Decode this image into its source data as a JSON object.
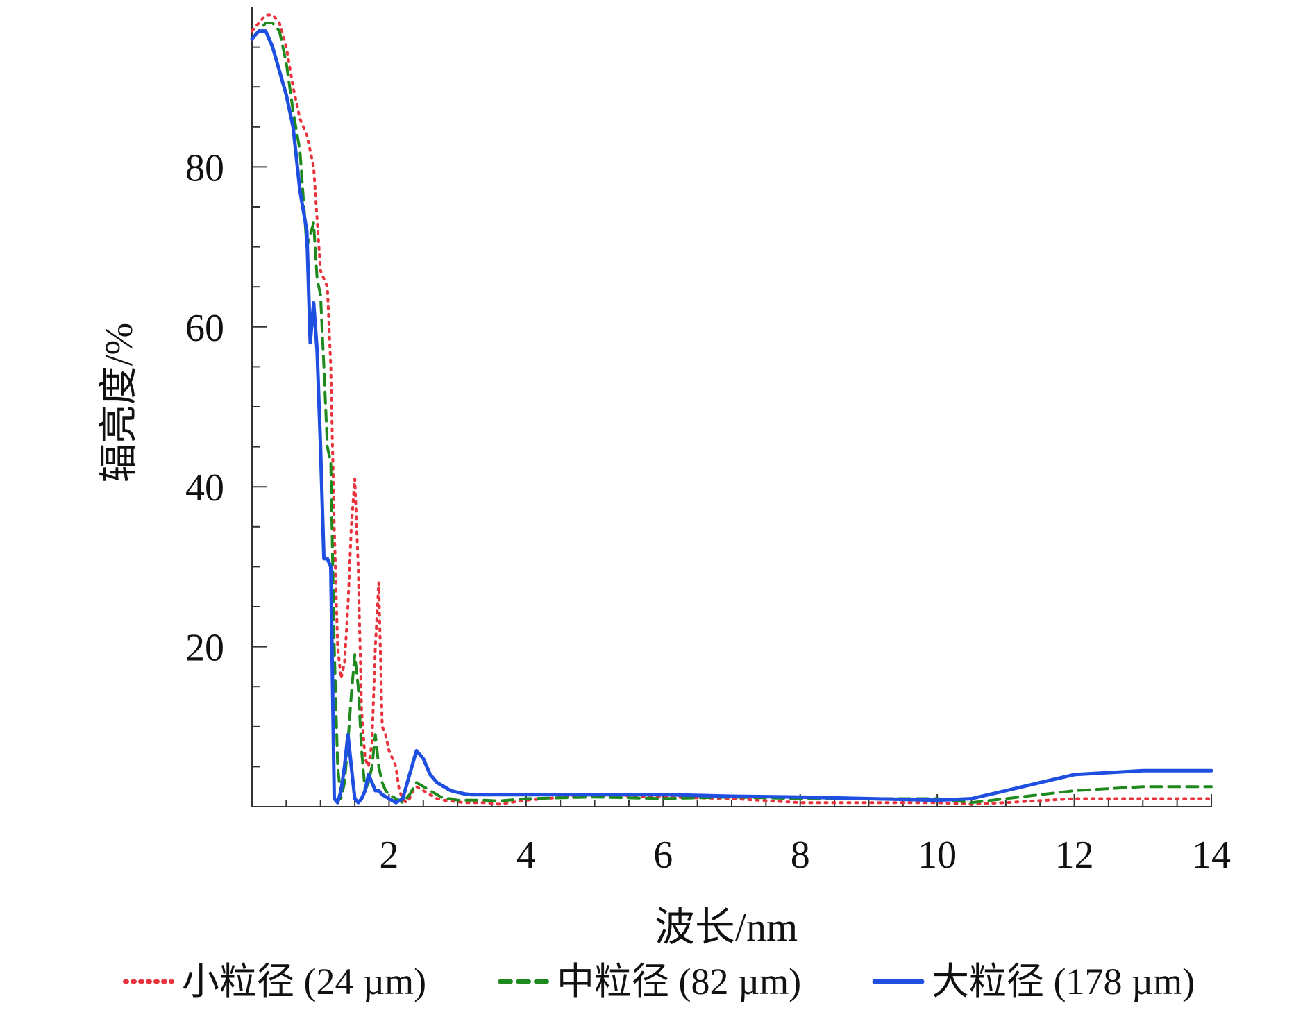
{
  "chart_data": {
    "type": "line",
    "xlabel": "波长/nm",
    "ylabel": "辐亮度/%",
    "xlim": [
      0,
      14
    ],
    "ylim": [
      0,
      100
    ],
    "x_ticks": [
      2,
      4,
      6,
      8,
      10,
      12,
      14
    ],
    "y_ticks": [
      20,
      40,
      60,
      80
    ],
    "grid": false,
    "legend": "bottom",
    "series": [
      {
        "name": "小粒径 (24 µm)",
        "color": "#e8323c",
        "style": "dotted",
        "x": [
          0.0,
          0.1,
          0.2,
          0.3,
          0.4,
          0.5,
          0.6,
          0.7,
          0.8,
          0.9,
          1.0,
          1.05,
          1.1,
          1.15,
          1.2,
          1.25,
          1.3,
          1.35,
          1.4,
          1.45,
          1.5,
          1.55,
          1.6,
          1.65,
          1.7,
          1.75,
          1.8,
          1.85,
          1.9,
          1.95,
          2.0,
          2.05,
          2.1,
          2.15,
          2.2,
          2.25,
          2.3,
          2.35,
          2.4,
          2.5,
          2.6,
          2.7,
          2.8,
          2.9,
          3.0,
          3.1,
          3.2,
          3.4,
          3.6,
          4.0,
          5.0,
          6.0,
          7.0,
          8.0,
          9.0,
          10.0,
          10.5,
          11.0,
          12.0,
          13.0,
          14.0
        ],
        "y": [
          97,
          98,
          99,
          99,
          98,
          95,
          90,
          86,
          84,
          80,
          67,
          66,
          65,
          55,
          35,
          20,
          16,
          18,
          25,
          35,
          41,
          30,
          12,
          6,
          5,
          8,
          20,
          28,
          10,
          9,
          7,
          6,
          5,
          2,
          1,
          0.5,
          1,
          2,
          2.5,
          2,
          1.5,
          1,
          0.8,
          0.7,
          0.6,
          0.5,
          0.5,
          0.5,
          0.3,
          0.8,
          1.5,
          1.2,
          1.0,
          0.5,
          0.5,
          0.5,
          0.3,
          0.5,
          1.0,
          1.0,
          1.0
        ]
      },
      {
        "name": "中粒径 (82 µm)",
        "color": "#1e8a1e",
        "style": "dashed",
        "x": [
          0.0,
          0.1,
          0.2,
          0.3,
          0.4,
          0.5,
          0.6,
          0.7,
          0.8,
          0.9,
          0.95,
          1.0,
          1.05,
          1.1,
          1.15,
          1.2,
          1.25,
          1.3,
          1.35,
          1.4,
          1.45,
          1.5,
          1.55,
          1.6,
          1.65,
          1.7,
          1.75,
          1.8,
          1.85,
          1.9,
          1.95,
          2.0,
          2.1,
          2.2,
          2.3,
          2.4,
          2.5,
          2.6,
          2.7,
          2.8,
          2.9,
          3.0,
          3.2,
          3.4,
          3.6,
          4.0,
          5.0,
          6.0,
          7.0,
          8.0,
          9.0,
          10.0,
          10.5,
          11.0,
          12.0,
          13.0,
          14.0
        ],
        "y": [
          96,
          97,
          98,
          98,
          97,
          93,
          87,
          82,
          70,
          73,
          66,
          64,
          55,
          45,
          43,
          20,
          5,
          1,
          3,
          8,
          14,
          19,
          15,
          7,
          2,
          3,
          5,
          9,
          5,
          3,
          2,
          1.5,
          1,
          0.5,
          1.5,
          3,
          2.5,
          2,
          1.5,
          1,
          1,
          0.8,
          0.8,
          0.8,
          0.7,
          1.0,
          1.2,
          1.0,
          1.2,
          1.0,
          1.0,
          1.0,
          0.5,
          1.0,
          2.0,
          2.5,
          2.5
        ]
      },
      {
        "name": "大粒径 (178 µm)",
        "color": "#1f4fe0",
        "style": "solid",
        "x": [
          0.0,
          0.1,
          0.2,
          0.3,
          0.4,
          0.5,
          0.6,
          0.7,
          0.8,
          0.85,
          0.9,
          0.95,
          1.0,
          1.05,
          1.1,
          1.15,
          1.2,
          1.25,
          1.3,
          1.35,
          1.4,
          1.45,
          1.5,
          1.55,
          1.6,
          1.65,
          1.7,
          1.75,
          1.8,
          1.85,
          1.9,
          2.0,
          2.1,
          2.2,
          2.3,
          2.4,
          2.5,
          2.6,
          2.7,
          2.8,
          2.9,
          3.0,
          3.1,
          3.2,
          3.4,
          3.6,
          4.0,
          5.0,
          6.0,
          7.0,
          8.0,
          9.0,
          10.0,
          10.5,
          11.0,
          11.5,
          12.0,
          13.0,
          14.0
        ],
        "y": [
          96,
          97,
          97,
          95,
          92,
          89,
          85,
          77,
          72,
          58,
          63,
          57,
          45,
          31,
          31,
          30,
          1,
          0.5,
          2,
          5,
          9,
          5,
          1,
          0.5,
          1,
          2,
          4,
          3,
          2,
          2,
          1.5,
          1,
          0.5,
          1,
          4,
          7,
          6,
          4,
          3,
          2.5,
          2,
          1.8,
          1.6,
          1.5,
          1.5,
          1.5,
          1.5,
          1.5,
          1.5,
          1.3,
          1.2,
          1.0,
          0.8,
          1.0,
          2.0,
          3.0,
          4.0,
          4.5,
          4.5
        ]
      }
    ]
  }
}
